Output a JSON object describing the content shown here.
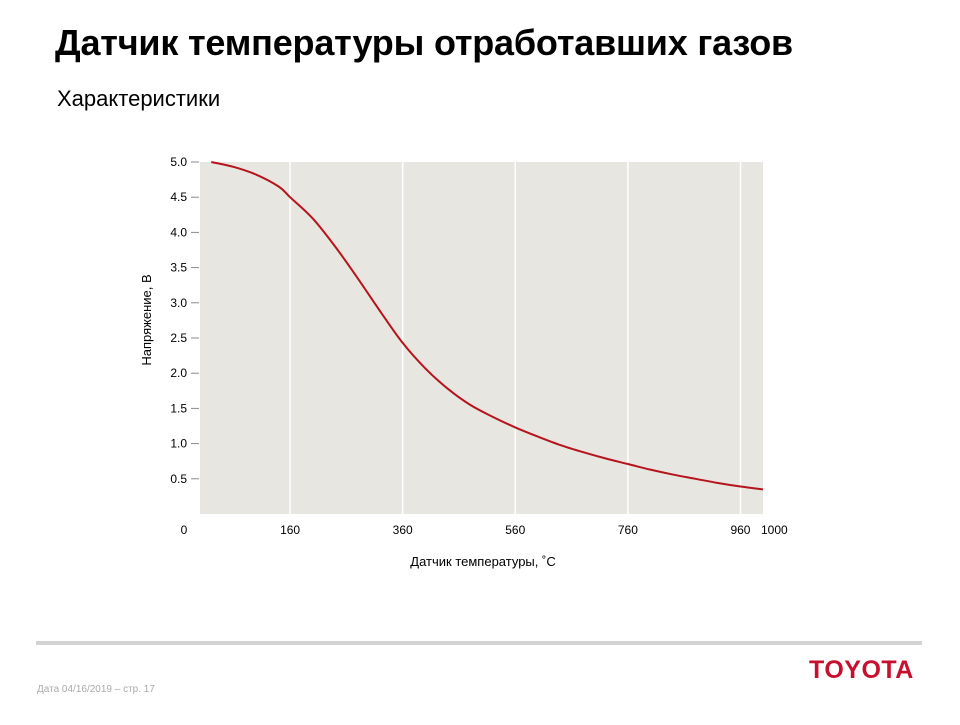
{
  "slide": {
    "title": "Датчик температуры отработавших газов",
    "subtitle": "Характеристики"
  },
  "chart_data": {
    "type": "line",
    "xlabel": "Датчик температуры, ˚C",
    "ylabel": "Напряжение, В",
    "xlim": [
      0,
      1000
    ],
    "ylim": [
      0,
      5.0
    ],
    "x_ticks": [
      0,
      160,
      360,
      560,
      760,
      960,
      1000
    ],
    "y_ticks": [
      0.5,
      1.0,
      1.5,
      2.0,
      2.5,
      3.0,
      3.5,
      4.0,
      4.5,
      5.0
    ],
    "grid": true,
    "colors": {
      "plot_background": "#e8e6e1",
      "grid": "#ffffff",
      "line": "#b5141c"
    },
    "series": [
      {
        "x": [
          20,
          60,
          100,
          140,
          160,
          200,
          240,
          280,
          320,
          360,
          400,
          440,
          480,
          520,
          560,
          600,
          640,
          680,
          720,
          760,
          800,
          840,
          880,
          920,
          960,
          1000
        ],
        "y": [
          5.0,
          4.93,
          4.82,
          4.65,
          4.5,
          4.2,
          3.8,
          3.35,
          2.88,
          2.43,
          2.07,
          1.78,
          1.55,
          1.38,
          1.23,
          1.1,
          0.98,
          0.88,
          0.79,
          0.71,
          0.63,
          0.56,
          0.5,
          0.44,
          0.39,
          0.35
        ]
      }
    ]
  },
  "footer": {
    "date_text": "Дата 04/16/2019 – стр. 17",
    "brand": "TOYOTA"
  }
}
